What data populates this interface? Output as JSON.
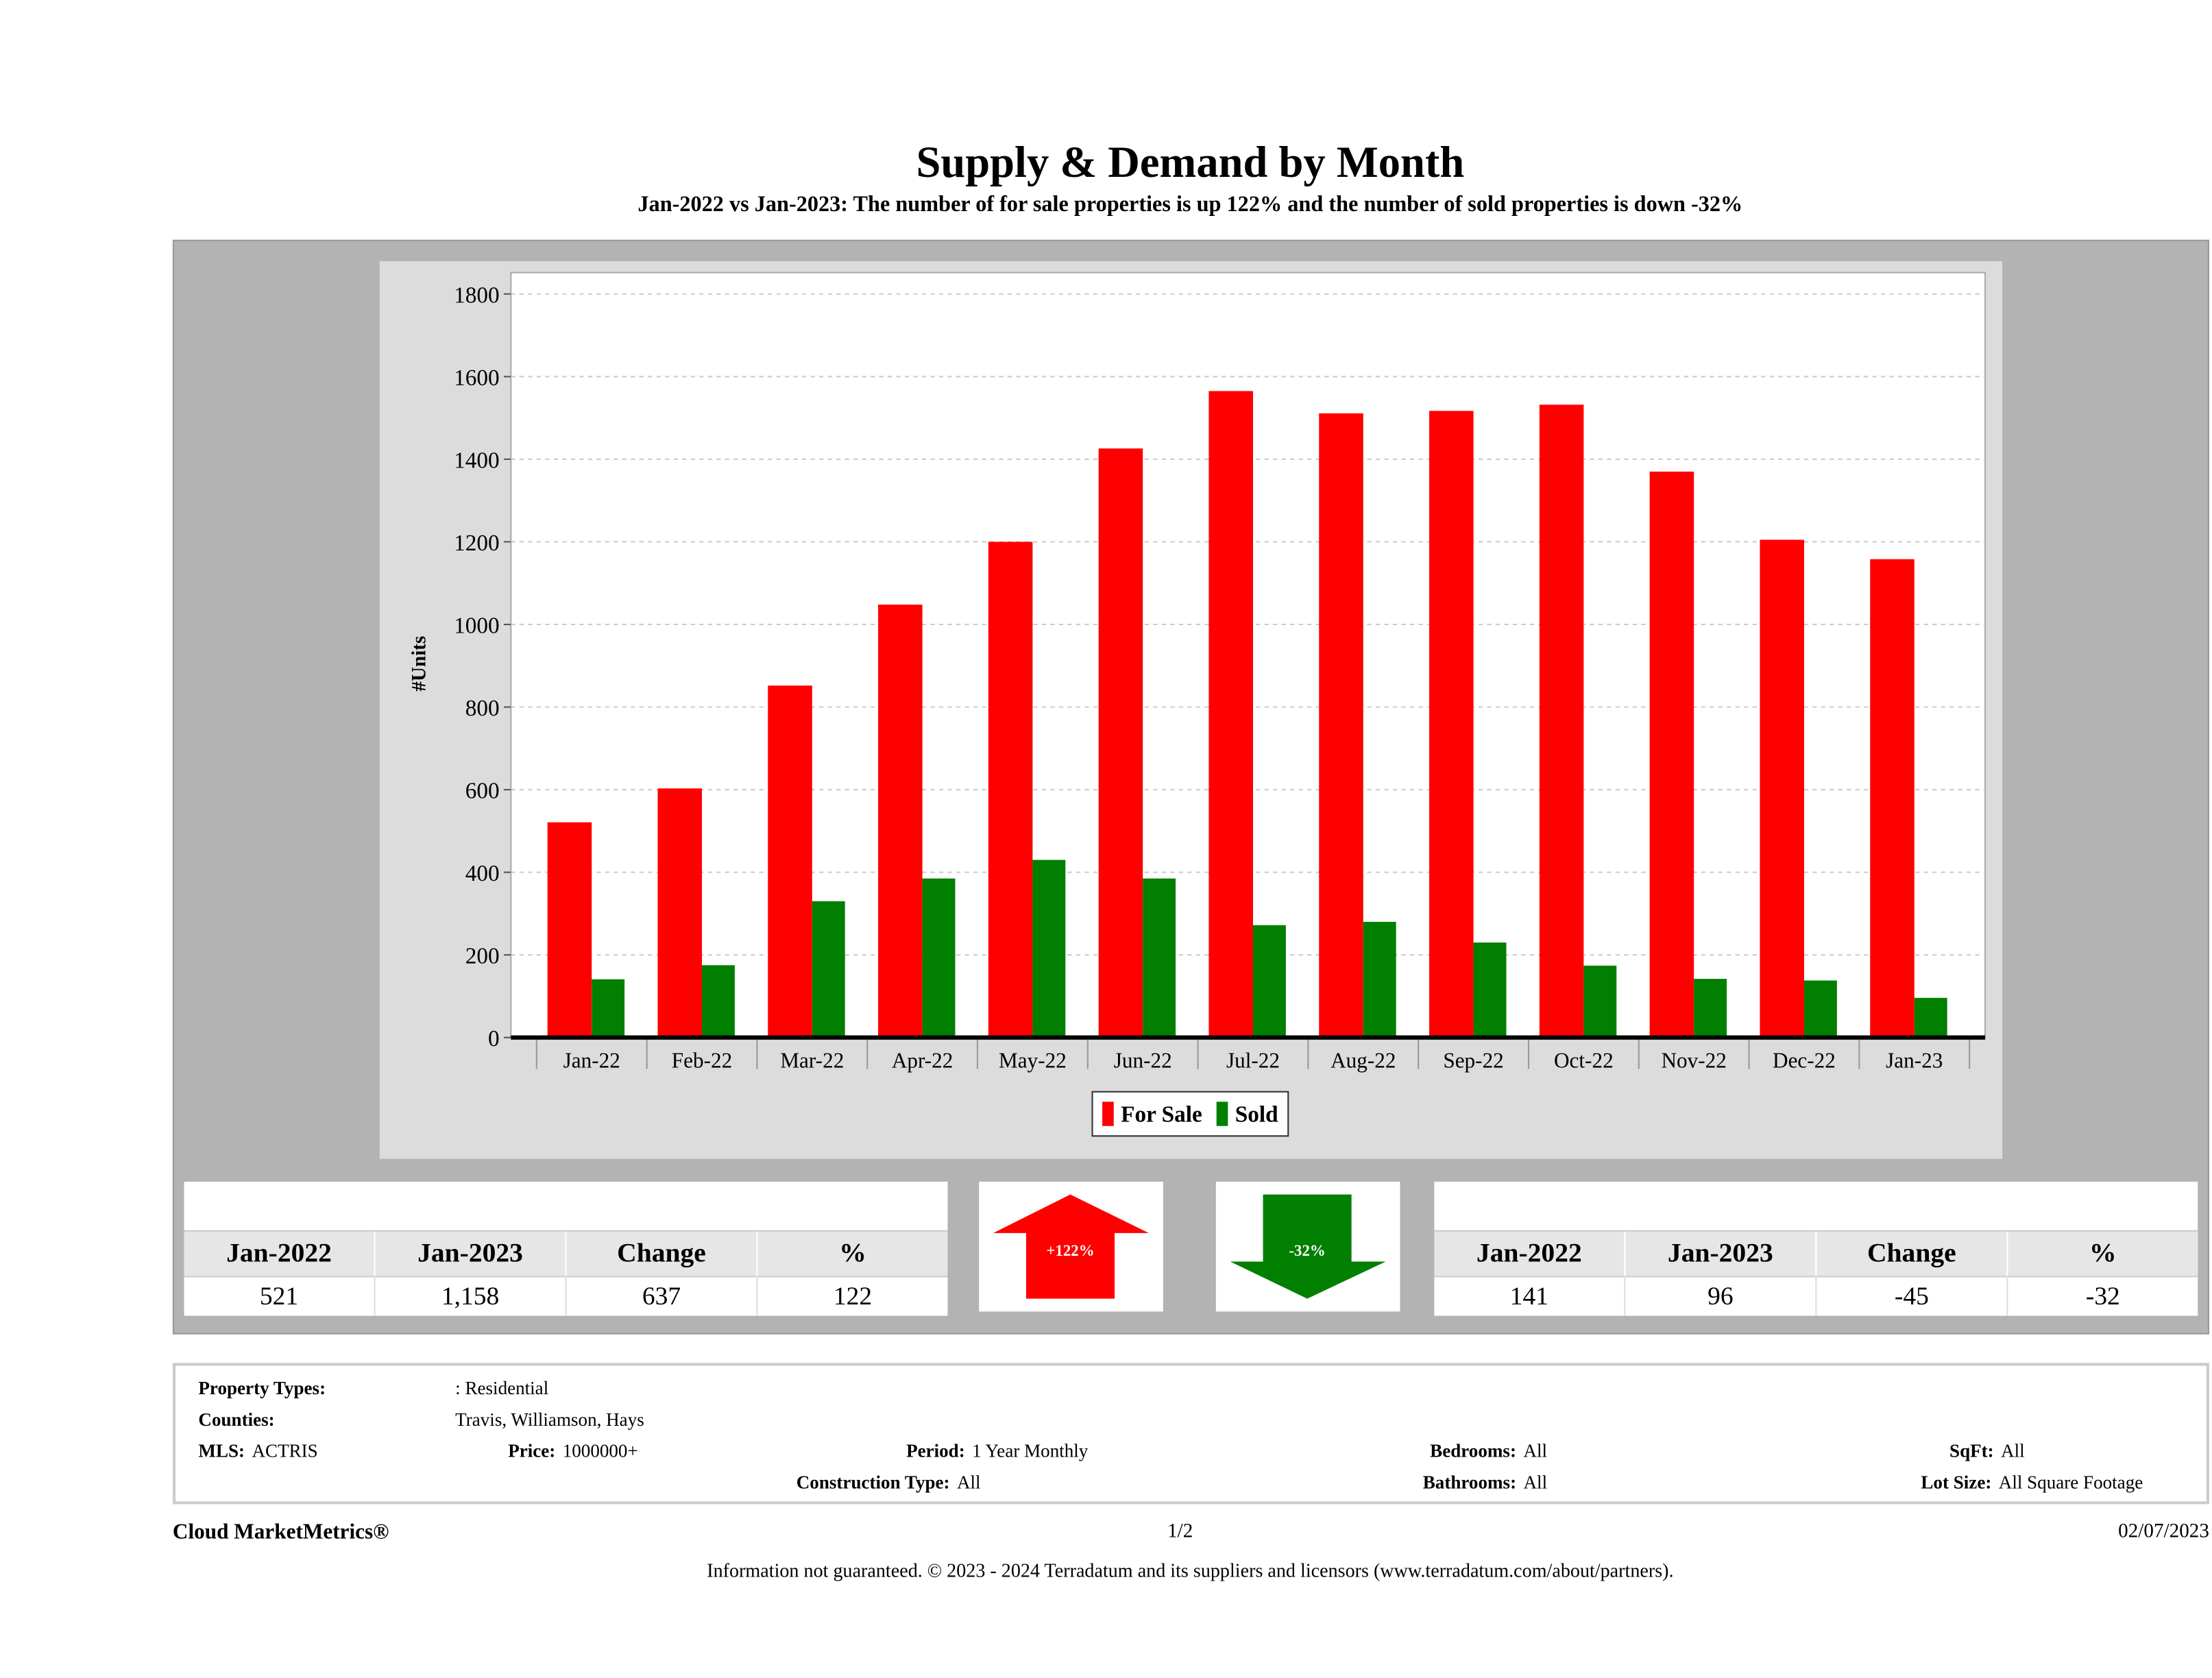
{
  "header": {
    "title": "Supply & Demand by Month",
    "subtitle": "Jan-2022 vs Jan-2023: The number of for sale properties is up 122% and the number of sold properties is down -32%"
  },
  "chart_data": {
    "type": "bar",
    "title": "Supply & Demand by Month",
    "ylabel": "#Units",
    "xlabel": "",
    "ylim": [
      0,
      1800
    ],
    "yticks": [
      "0",
      "200",
      "400",
      "600",
      "800",
      "1000",
      "1200",
      "1400",
      "1600",
      "1800"
    ],
    "grid": true,
    "legend_placement": "bottom-center",
    "categories": [
      "Jan-22",
      "Feb-22",
      "Mar-22",
      "Apr-22",
      "May-22",
      "Jun-22",
      "Jul-22",
      "Aug-22",
      "Sep-22",
      "Oct-22",
      "Nov-22",
      "Dec-22",
      "Jan-23"
    ],
    "series": [
      {
        "name": "For Sale",
        "color": "#ff0000",
        "values": [
          521,
          603,
          852,
          1048,
          1200,
          1426,
          1565,
          1511,
          1517,
          1532,
          1370,
          1205,
          1158
        ]
      },
      {
        "name": "Sold",
        "color": "#007f00",
        "values": [
          141,
          175,
          330,
          385,
          430,
          385,
          272,
          280,
          230,
          174,
          142,
          138,
          96
        ]
      }
    ]
  },
  "for_sale_table": {
    "headers": [
      "Jan-2022",
      "Jan-2023",
      "Change",
      "%"
    ],
    "values": [
      "521",
      "1,158",
      "637",
      "122"
    ]
  },
  "sold_table": {
    "headers": [
      "Jan-2022",
      "Jan-2023",
      "Change",
      "%"
    ],
    "values": [
      "141",
      "96",
      "-45",
      "-32"
    ]
  },
  "up_arrow": {
    "label": "+122%",
    "color": "#ff0000"
  },
  "down_arrow": {
    "label": "-32%",
    "color": "#007f00"
  },
  "info": {
    "property_types_label": "Property Types:",
    "property_types": ": Residential",
    "counties_label": "Counties:",
    "counties": "Travis, Williamson, Hays",
    "mls_label": "MLS:",
    "mls": "ACTRIS",
    "price_label": "Price:",
    "price": "1000000+",
    "period_label": "Period:",
    "period": "1 Year Monthly",
    "construction_label": "Construction Type:",
    "construction": "All",
    "bedrooms_label": "Bedrooms:",
    "bedrooms": "All",
    "bathrooms_label": "Bathrooms:",
    "bathrooms": "All",
    "sqft_label": "SqFt:",
    "sqft": "All",
    "lot_label": "Lot Size:",
    "lot": "All Square Footage"
  },
  "footer": {
    "brand": "Cloud MarketMetrics®",
    "page": "1/2",
    "date": "02/07/2023",
    "disclaimer": "Information not guaranteed. © 2023 - 2024 Terradatum and its suppliers and licensors (www.terradatum.com/about/partners)."
  }
}
